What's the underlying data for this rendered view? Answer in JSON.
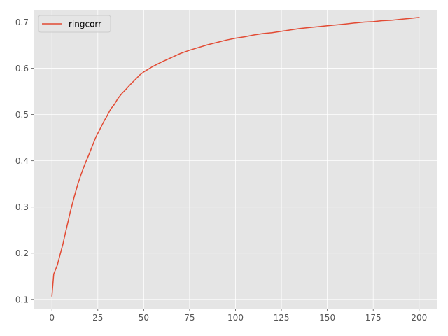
{
  "chart_data": {
    "type": "line",
    "title": "",
    "xlabel": "",
    "ylabel": "",
    "xlim": [
      -10,
      210
    ],
    "ylim": [
      0.08,
      0.725
    ],
    "xticks": [
      0,
      25,
      50,
      75,
      100,
      125,
      150,
      175,
      200
    ],
    "yticks": [
      0.1,
      0.2,
      0.3,
      0.4,
      0.5,
      0.6,
      0.7
    ],
    "grid": true,
    "legend": {
      "position": "top-left",
      "entries": [
        "ringcorr"
      ]
    },
    "colors": {
      "series": "#e24a33",
      "background": "#e5e5e5",
      "grid": "#ffffff",
      "tick": "#555555"
    },
    "series": [
      {
        "name": "ringcorr",
        "x": [
          0,
          1,
          2,
          3,
          4,
          5,
          6,
          7,
          8,
          9,
          10,
          12,
          14,
          16,
          18,
          20,
          22,
          24,
          26,
          28,
          30,
          32,
          34,
          36,
          38,
          40,
          42,
          44,
          46,
          48,
          50,
          55,
          60,
          65,
          70,
          75,
          80,
          85,
          90,
          95,
          100,
          105,
          110,
          115,
          120,
          125,
          130,
          135,
          140,
          145,
          150,
          155,
          160,
          165,
          170,
          175,
          180,
          185,
          190,
          195,
          200
        ],
        "values": [
          0.107,
          0.155,
          0.165,
          0.175,
          0.19,
          0.205,
          0.22,
          0.238,
          0.255,
          0.272,
          0.29,
          0.32,
          0.348,
          0.372,
          0.393,
          0.412,
          0.432,
          0.452,
          0.467,
          0.483,
          0.497,
          0.512,
          0.522,
          0.535,
          0.545,
          0.553,
          0.562,
          0.57,
          0.578,
          0.586,
          0.592,
          0.604,
          0.614,
          0.623,
          0.632,
          0.639,
          0.645,
          0.651,
          0.656,
          0.661,
          0.665,
          0.668,
          0.672,
          0.675,
          0.677,
          0.68,
          0.683,
          0.686,
          0.688,
          0.69,
          0.692,
          0.694,
          0.696,
          0.698,
          0.7,
          0.701,
          0.703,
          0.704,
          0.706,
          0.708,
          0.71
        ]
      }
    ]
  }
}
